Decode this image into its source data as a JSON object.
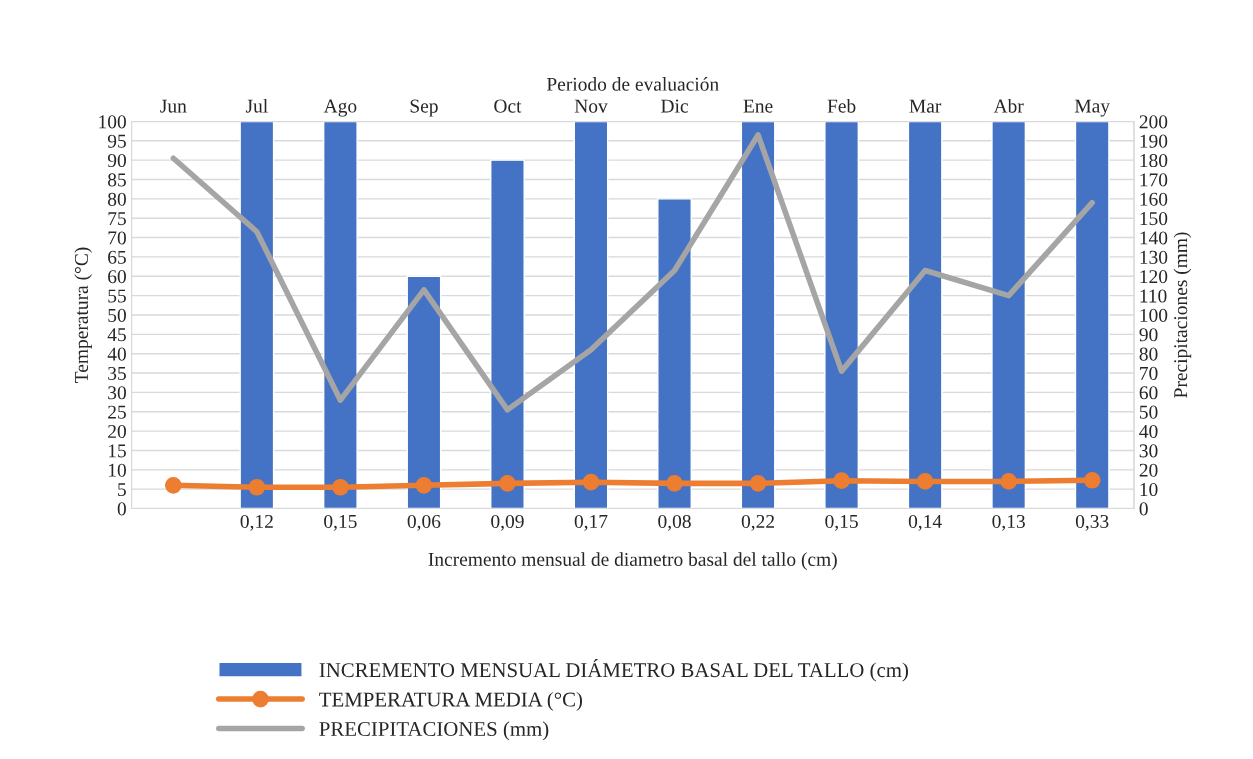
{
  "chart_data": {
    "type": "bar",
    "x2label": "Periodo de evaluación",
    "xlabel": "Incremento mensual de diametro basal del tallo (cm)",
    "ylabel": "Temperatura (°C)",
    "y2label": "Precipitaciones (mm)",
    "categories": [
      "Jun",
      "Jul",
      "Ago",
      "Sep",
      "Oct",
      "Nov",
      "Dic",
      "Ene",
      "Feb",
      "Mar",
      "Abr",
      "May"
    ],
    "series": [
      {
        "name": "INCREMENTO MENSUAL DIÁMETRO BASAL DEL TALLO (cm)",
        "color": "#4472c4",
        "values": [
          null,
          100,
          100,
          60,
          90,
          100,
          80,
          100,
          100,
          100,
          100,
          100
        ]
      },
      {
        "name": "TEMPERATURA MEDIA (°C)",
        "type": "line",
        "color": "#ed7d31",
        "marker": "circle",
        "values": [
          6,
          5.5,
          5.5,
          6,
          6.5,
          6.8,
          6.5,
          6.5,
          7.2,
          7,
          7,
          7.3
        ]
      },
      {
        "name": "PRECIPITACIONES (mm)",
        "type": "line",
        "axis": "y2",
        "color": "#a5a5a5",
        "marker": "none",
        "values": [
          181,
          143,
          56,
          113,
          51,
          82,
          123,
          193,
          71,
          123,
          110,
          158
        ]
      }
    ],
    "ylim": [
      0,
      100
    ],
    "yticks": [
      0,
      5,
      10,
      15,
      20,
      25,
      30,
      35,
      40,
      45,
      50,
      55,
      60,
      65,
      70,
      75,
      80,
      85,
      90,
      95,
      100
    ],
    "y2lim": [
      0,
      200
    ],
    "y2ticks": [
      0,
      10,
      20,
      30,
      40,
      50,
      60,
      70,
      80,
      90,
      100,
      110,
      120,
      130,
      140,
      150,
      160,
      170,
      180,
      190,
      200
    ],
    "annotations": [
      "0,12",
      "0,15",
      "0,06",
      "0,09",
      "0,17",
      "0,08",
      "0,22",
      "0,15",
      "0,14",
      "0,13",
      "0,33"
    ],
    "grid": "y",
    "legend": "bottom"
  }
}
